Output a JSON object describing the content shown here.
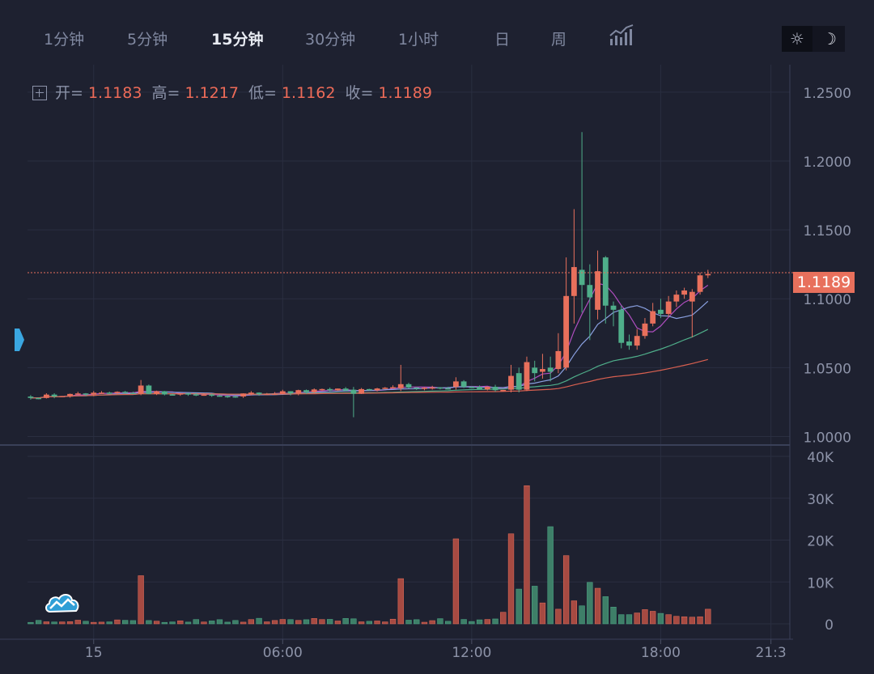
{
  "toolbar": {
    "timeframes": [
      "1分钟",
      "5分钟",
      "15分钟",
      "30分钟",
      "1小时",
      "日",
      "周"
    ],
    "active": "15分钟",
    "indicators_icon": "indicators-icon",
    "theme_light_icon": "sun-icon",
    "theme_dark_icon": "moon-icon"
  },
  "legend": {
    "open_label": "开=",
    "open": "1.1183",
    "high_label": "高=",
    "high": "1.1217",
    "low_label": "低=",
    "low": "1.1162",
    "close_label": "收=",
    "close": "1.1189"
  },
  "price_tag": "1.1189",
  "colors": {
    "up": "#e8705c",
    "down": "#4fae8a",
    "background": "#1e2130",
    "grid": "#2a2e40",
    "ma_purple": "#b04ec0",
    "ma_blue": "#8aa0e0",
    "ma_green": "#4fae8a",
    "ma_red": "#d96050"
  },
  "chart_data": {
    "type": "candlestick",
    "price_axis": {
      "ticks": [
        "1.2500",
        "1.2000",
        "1.1500",
        "1.1000",
        "1.0500",
        "1.0000"
      ],
      "tick_values": [
        1.25,
        1.2,
        1.15,
        1.1,
        1.05,
        1.0
      ],
      "range": [
        0.995,
        1.264
      ]
    },
    "volume_axis": {
      "ticks": [
        "40K",
        "30K",
        "20K",
        "10K",
        "0"
      ],
      "tick_values": [
        40000,
        30000,
        20000,
        10000,
        0
      ],
      "range": [
        0,
        40000
      ]
    },
    "time_axis": {
      "ticks": [
        "15",
        "06:00",
        "12:00",
        "18:00",
        "21:3"
      ],
      "tick_hours": [
        0,
        6,
        12,
        18,
        21.5
      ],
      "range_hours": [
        -2.1,
        22.1
      ]
    },
    "last_price": 1.1189,
    "interval_minutes": 15,
    "segments": [
      {
        "start_h": -2.0,
        "end_h": 1.75,
        "from": 1.029,
        "to": 1.032,
        "noise": 0.0025,
        "vol": 800
      },
      {
        "start_h": 1.75,
        "end_h": 4.0,
        "from": 1.032,
        "to": 1.03,
        "noise": 0.0025,
        "vol": 700
      },
      {
        "start_h": 4.0,
        "end_h": 8.0,
        "from": 1.03,
        "to": 1.034,
        "noise": 0.003,
        "vol": 900
      },
      {
        "start_h": 8.0,
        "end_h": 13.0,
        "from": 1.034,
        "to": 1.035,
        "noise": 0.003,
        "vol": 900
      },
      {
        "start_h": 13.0,
        "end_h": 19.75,
        "from": 1.035,
        "to": 1.118,
        "noise": 0.004,
        "vol": 2000
      }
    ],
    "featured_candles": [
      {
        "h": 1.5,
        "o": 1.031,
        "c": 1.037,
        "hi": 1.041,
        "lo": 1.03,
        "vol": 11500
      },
      {
        "h": 8.25,
        "o": 1.034,
        "c": 1.031,
        "hi": 1.036,
        "lo": 1.014,
        "vol": 1200
      },
      {
        "h": 9.75,
        "o": 1.035,
        "c": 1.038,
        "hi": 1.052,
        "lo": 1.033,
        "vol": 10800
      },
      {
        "h": 11.5,
        "o": 1.036,
        "c": 1.04,
        "hi": 1.043,
        "lo": 1.034,
        "vol": 20300
      },
      {
        "h": 13.25,
        "o": 1.034,
        "c": 1.044,
        "hi": 1.052,
        "lo": 1.032,
        "vol": 21500
      },
      {
        "h": 13.5,
        "o": 1.046,
        "c": 1.034,
        "hi": 1.05,
        "lo": 1.032,
        "vol": 8300
      },
      {
        "h": 13.75,
        "o": 1.034,
        "c": 1.054,
        "hi": 1.058,
        "lo": 1.033,
        "vol": 33000
      },
      {
        "h": 14.0,
        "o": 1.05,
        "c": 1.046,
        "hi": 1.055,
        "lo": 1.04,
        "vol": 9000
      },
      {
        "h": 14.25,
        "o": 1.047,
        "c": 1.049,
        "hi": 1.06,
        "lo": 1.042,
        "vol": 5000
      },
      {
        "h": 14.5,
        "o": 1.05,
        "c": 1.047,
        "hi": 1.058,
        "lo": 1.04,
        "vol": 23200
      },
      {
        "h": 14.75,
        "o": 1.049,
        "c": 1.062,
        "hi": 1.075,
        "lo": 1.046,
        "vol": 3500
      },
      {
        "h": 15.0,
        "o": 1.05,
        "c": 1.102,
        "hi": 1.13,
        "lo": 1.048,
        "vol": 16300
      },
      {
        "h": 15.25,
        "o": 1.102,
        "c": 1.123,
        "hi": 1.165,
        "lo": 1.082,
        "vol": 5500
      },
      {
        "h": 15.5,
        "o": 1.121,
        "c": 1.11,
        "hi": 1.221,
        "lo": 1.09,
        "vol": 4300
      },
      {
        "h": 15.75,
        "o": 1.11,
        "c": 1.101,
        "hi": 1.125,
        "lo": 1.07,
        "vol": 9900
      },
      {
        "h": 16.0,
        "o": 1.092,
        "c": 1.12,
        "hi": 1.135,
        "lo": 1.085,
        "vol": 8500
      },
      {
        "h": 16.25,
        "o": 1.13,
        "c": 1.095,
        "hi": 1.131,
        "lo": 1.082,
        "vol": 6500
      },
      {
        "h": 16.5,
        "o": 1.095,
        "c": 1.092,
        "hi": 1.098,
        "lo": 1.08,
        "vol": 4000
      },
      {
        "h": 16.75,
        "o": 1.092,
        "c": 1.068,
        "hi": 1.095,
        "lo": 1.064,
        "vol": 2200
      },
      {
        "h": 17.0,
        "o": 1.069,
        "c": 1.066,
        "hi": 1.074,
        "lo": 1.063,
        "vol": 2200
      },
      {
        "h": 17.25,
        "o": 1.066,
        "c": 1.073,
        "hi": 1.078,
        "lo": 1.063,
        "vol": 2600
      },
      {
        "h": 17.5,
        "o": 1.073,
        "c": 1.082,
        "hi": 1.086,
        "lo": 1.071,
        "vol": 3400
      },
      {
        "h": 17.75,
        "o": 1.082,
        "c": 1.091,
        "hi": 1.097,
        "lo": 1.08,
        "vol": 3000
      },
      {
        "h": 18.0,
        "o": 1.092,
        "c": 1.089,
        "hi": 1.1,
        "lo": 1.086,
        "vol": 2500
      },
      {
        "h": 18.25,
        "o": 1.089,
        "c": 1.098,
        "hi": 1.102,
        "lo": 1.087,
        "vol": 2200
      },
      {
        "h": 18.5,
        "o": 1.098,
        "c": 1.103,
        "hi": 1.106,
        "lo": 1.094,
        "vol": 1800
      },
      {
        "h": 18.75,
        "o": 1.103,
        "c": 1.106,
        "hi": 1.108,
        "lo": 1.1,
        "vol": 1700
      },
      {
        "h": 19.0,
        "o": 1.098,
        "c": 1.105,
        "hi": 1.107,
        "lo": 1.072,
        "vol": 1600
      },
      {
        "h": 19.25,
        "o": 1.105,
        "c": 1.117,
        "hi": 1.119,
        "lo": 1.103,
        "vol": 1700
      },
      {
        "h": 19.5,
        "o": 1.117,
        "c": 1.118,
        "hi": 1.121,
        "lo": 1.115,
        "vol": 3500
      },
      {
        "h": 19.75,
        "o": 1.1183,
        "c": 1.1189,
        "hi": 1.1217,
        "lo": 1.1162,
        "vol": 1200
      }
    ]
  }
}
